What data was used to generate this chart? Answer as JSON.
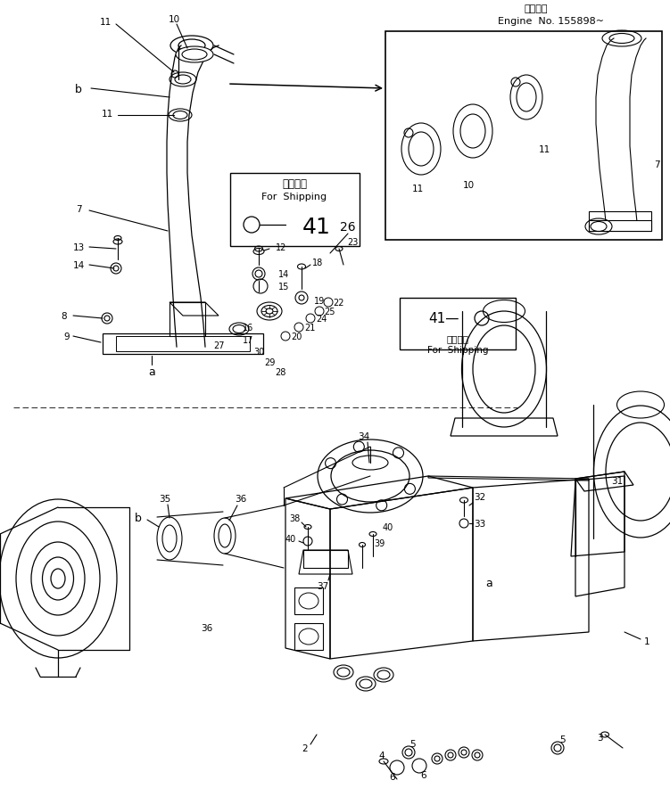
{
  "title_jp": "適用号機",
  "title_en": "Engine  No. 155898~",
  "shipping_label_jp": "運搞部品",
  "shipping_label_en": "For  Shipping",
  "bg_color": "#ffffff",
  "lc": "#000000",
  "fig_width": 7.51,
  "fig_height": 9.04,
  "dpi": 100
}
